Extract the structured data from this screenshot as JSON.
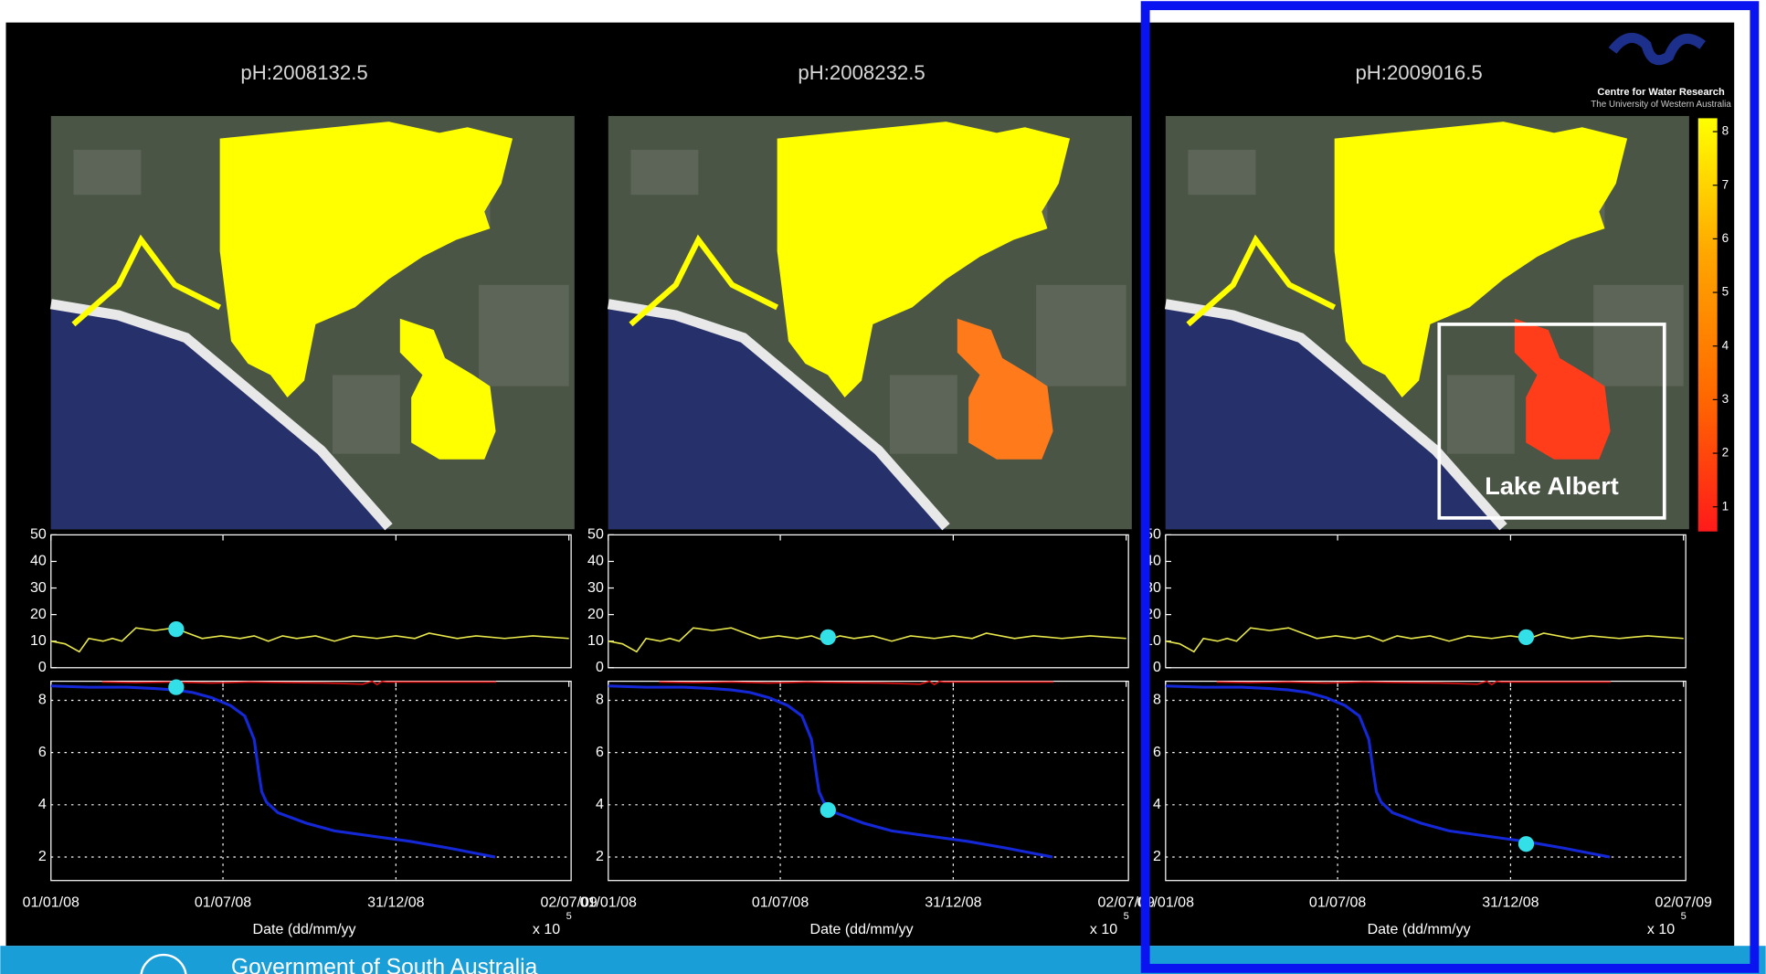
{
  "header": {
    "logo_title": "Centre for Water Research",
    "logo_subtitle": "The University of Western Australia"
  },
  "footer": {
    "text": "Government of South Australia"
  },
  "annotation": "Lake Albert",
  "colorbar": {
    "lim": [
      0.54,
      8.25
    ],
    "ticks": [
      1,
      2,
      3,
      4,
      5,
      6,
      7,
      8
    ],
    "colors": [
      "#ff1a1a",
      "#ff6a00",
      "#ffa500",
      "#ffff00"
    ]
  },
  "map_colors": {
    "lake": "#ffff00",
    "ocean": "#26306b",
    "land": "#4a5546"
  },
  "timeseries": {
    "xlim": [
      0,
      548
    ],
    "xticks": [
      {
        "value": 0,
        "label": "01/01/08"
      },
      {
        "value": 182,
        "label": "01/07/08"
      },
      {
        "value": 365,
        "label": "31/12/08"
      },
      {
        "value": 548,
        "label": "02/07/09"
      }
    ],
    "x_label": "Date (dd/mm/yy",
    "x_multiplier": "x 10",
    "x_exponent": "5",
    "upper": {
      "ylim": [
        0,
        50
      ],
      "yticks": [
        0,
        10,
        20,
        30,
        40,
        50
      ],
      "grid": false,
      "series": [
        {
          "color": "#e8e84a",
          "x": [
            0,
            15,
            30,
            40,
            55,
            65,
            75,
            90,
            110,
            130,
            145,
            160,
            180,
            200,
            215,
            230,
            245,
            260,
            280,
            300,
            320,
            345,
            365,
            385,
            400,
            430,
            450,
            480,
            510,
            548
          ],
          "values": [
            10,
            9,
            6,
            11,
            10,
            11,
            10,
            15,
            14,
            15,
            13,
            11,
            12,
            11,
            12,
            10,
            12,
            11,
            12,
            10,
            12,
            11,
            12,
            11,
            13,
            11,
            12,
            11,
            12,
            11
          ]
        }
      ]
    },
    "lower": {
      "ylim": [
        1.1,
        8.73
      ],
      "yticks": [
        2,
        4,
        6,
        8
      ],
      "grid": true,
      "series": [
        {
          "color": "#e01010",
          "x": [
            54,
            90,
            130,
            170,
            210,
            250,
            290,
            330,
            340,
            345,
            350,
            355,
            370,
            400,
            430,
            471
          ],
          "values": [
            8.7,
            8.68,
            8.7,
            8.66,
            8.7,
            8.68,
            8.66,
            8.62,
            8.73,
            8.6,
            8.72,
            8.7,
            8.7,
            8.7,
            8.7,
            8.7
          ]
        },
        {
          "color": "#1428d8",
          "x": [
            0,
            40,
            80,
            110,
            130,
            150,
            170,
            190,
            205,
            215,
            220,
            223,
            228,
            240,
            270,
            300,
            340,
            380,
            420,
            470
          ],
          "values": [
            8.55,
            8.5,
            8.5,
            8.45,
            8.4,
            8.3,
            8.1,
            7.8,
            7.4,
            6.5,
            5.2,
            4.5,
            4.1,
            3.7,
            3.3,
            3.0,
            2.8,
            2.6,
            2.35,
            2.0
          ]
        }
      ]
    }
  },
  "panels": [
    {
      "title": "pH:2008132.5",
      "albert_color": "#ffff00",
      "marker": {
        "color": "#33e0e8",
        "x": 132.5,
        "upper": 14.5,
        "lower": 8.5
      }
    },
    {
      "title": "pH:2008232.5",
      "albert_color": "#ff7a1a",
      "marker": {
        "color": "#33e0e8",
        "x": 232.5,
        "upper": 11.5,
        "lower": 3.8
      }
    },
    {
      "title": "pH:2009016.5",
      "albert_color": "#ff3d1a",
      "marker": {
        "color": "#33e0e8",
        "x": 381.5,
        "upper": 11.5,
        "lower": 2.5
      }
    }
  ]
}
